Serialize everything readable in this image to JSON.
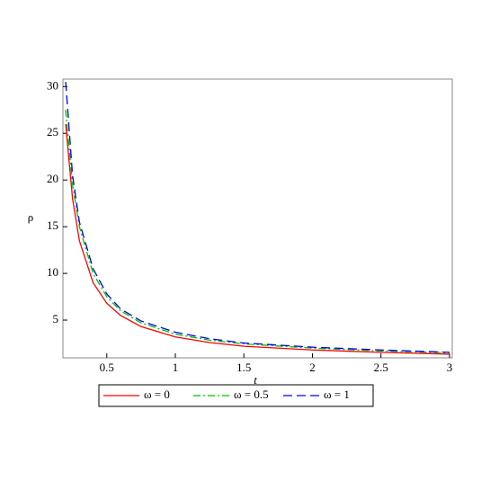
{
  "chart_data": {
    "type": "line",
    "x_label": "t",
    "y_label": "ρ",
    "x": [
      0.2,
      0.25,
      0.3,
      0.4,
      0.5,
      0.6,
      0.75,
      1,
      1.25,
      1.5,
      2,
      2.5,
      3
    ],
    "series": [
      {
        "name": "ω = 0",
        "color": "#ff0000",
        "dash": "solid",
        "values": [
          26,
          18,
          13.5,
          9,
          6.8,
          5.5,
          4.3,
          3.2,
          2.6,
          2.2,
          1.8,
          1.55,
          1.35
        ]
      },
      {
        "name": "ω = 0.5",
        "color": "#00c000",
        "dash": "dashdot",
        "values": [
          27.5,
          19.5,
          15,
          10,
          7.5,
          6,
          4.7,
          3.5,
          2.85,
          2.45,
          2.0,
          1.7,
          1.5
        ]
      },
      {
        "name": "ω = 1",
        "color": "#0000ff",
        "dash": "dash",
        "values": [
          30.5,
          20.5,
          15.5,
          10.5,
          7.8,
          6.2,
          4.9,
          3.7,
          3.0,
          2.55,
          2.1,
          1.8,
          1.55
        ]
      }
    ],
    "xlim": [
      0.18,
      3.02
    ],
    "ylim": [
      0.96,
      30.8
    ],
    "xticks": [
      0.5,
      1,
      1.5,
      2,
      2.5,
      3
    ],
    "yticks": [
      5,
      10,
      15,
      20,
      25,
      30
    ],
    "legend": "bottom"
  }
}
